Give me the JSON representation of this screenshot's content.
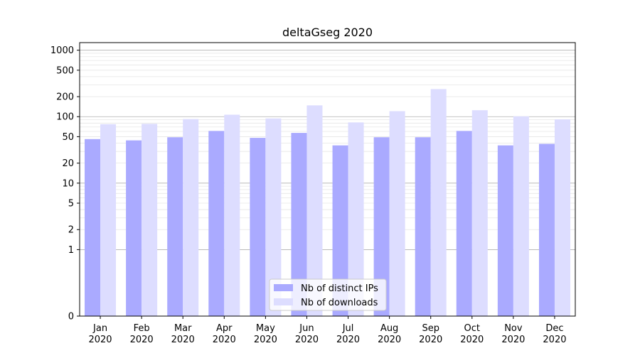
{
  "chart_data": {
    "type": "bar",
    "title": "deltaGseg 2020",
    "xlabel": "",
    "ylabel": "",
    "y_scale": "symlog",
    "ylim": [
      0,
      1300
    ],
    "grid": true,
    "legend_position": "bottom-center",
    "categories": [
      "Jan\n2020",
      "Feb\n2020",
      "Mar\n2020",
      "Apr\n2020",
      "May\n2020",
      "Jun\n2020",
      "Jul\n2020",
      "Aug\n2020",
      "Sep\n2020",
      "Oct\n2020",
      "Nov\n2020",
      "Dec\n2020"
    ],
    "y_ticks": [
      0,
      1,
      2,
      5,
      10,
      20,
      50,
      100,
      200,
      500,
      1000
    ],
    "series": [
      {
        "name": "Nb of distinct IPs",
        "color": "#aaaaff",
        "values": [
          46,
          44,
          49,
          61,
          48,
          57,
          37,
          49,
          49,
          61,
          37,
          39
        ]
      },
      {
        "name": "Nb of downloads",
        "color": "#ddddff",
        "values": [
          77,
          78,
          92,
          107,
          94,
          148,
          82,
          121,
          260,
          125,
          101,
          91
        ]
      }
    ]
  }
}
